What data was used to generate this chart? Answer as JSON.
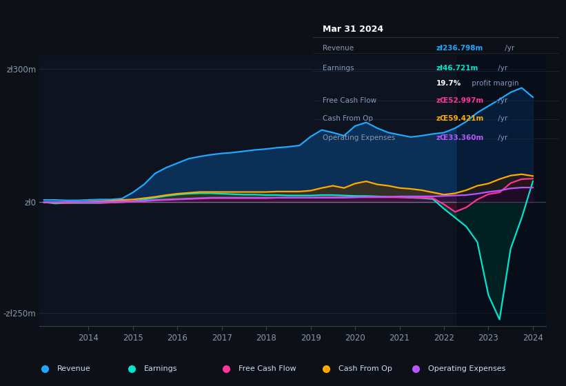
{
  "bg_color": "#0d1117",
  "plot_bg_color": "#0d1420",
  "grid_color": "#1e2535",
  "zero_line_color": "#7788aa",
  "years": [
    2013.0,
    2013.25,
    2013.5,
    2013.75,
    2014.0,
    2014.25,
    2014.5,
    2014.75,
    2015.0,
    2015.25,
    2015.5,
    2015.75,
    2016.0,
    2016.25,
    2016.5,
    2016.75,
    2017.0,
    2017.25,
    2017.5,
    2017.75,
    2018.0,
    2018.25,
    2018.5,
    2018.75,
    2019.0,
    2019.25,
    2019.5,
    2019.75,
    2020.0,
    2020.25,
    2020.5,
    2020.75,
    2021.0,
    2021.25,
    2021.5,
    2021.75,
    2022.0,
    2022.25,
    2022.5,
    2022.75,
    2023.0,
    2023.25,
    2023.5,
    2023.75,
    2024.0
  ],
  "revenue": [
    5,
    5,
    4,
    4,
    5,
    6,
    6,
    8,
    22,
    40,
    65,
    78,
    88,
    98,
    103,
    107,
    110,
    112,
    115,
    118,
    120,
    123,
    125,
    128,
    148,
    163,
    157,
    150,
    172,
    180,
    167,
    157,
    152,
    147,
    150,
    154,
    157,
    167,
    182,
    202,
    217,
    232,
    248,
    258,
    237
  ],
  "earnings": [
    0,
    -3,
    -2,
    -2,
    -2,
    -2,
    -1,
    0,
    2,
    6,
    10,
    14,
    17,
    19,
    20,
    20,
    19,
    18,
    17,
    17,
    16,
    16,
    15,
    15,
    15,
    16,
    16,
    15,
    14,
    14,
    13,
    12,
    11,
    10,
    9,
    7,
    -15,
    -35,
    -55,
    -90,
    -210,
    -265,
    -105,
    -35,
    47
  ],
  "free_cash_flow": [
    -1,
    -1,
    -2,
    -1,
    -1,
    -1,
    -1,
    0,
    1,
    2,
    4,
    5,
    6,
    7,
    8,
    9,
    9,
    9,
    9,
    9,
    9,
    10,
    10,
    10,
    10,
    11,
    11,
    11,
    11,
    11,
    11,
    11,
    11,
    11,
    10,
    9,
    -5,
    -22,
    -12,
    6,
    18,
    22,
    43,
    52,
    53
  ],
  "cash_from_op": [
    0,
    0,
    0,
    0,
    1,
    2,
    3,
    5,
    6,
    9,
    12,
    16,
    19,
    21,
    23,
    23,
    23,
    23,
    23,
    23,
    23,
    24,
    24,
    24,
    26,
    32,
    37,
    32,
    42,
    47,
    40,
    37,
    32,
    30,
    27,
    22,
    17,
    20,
    27,
    37,
    42,
    52,
    60,
    63,
    59
  ],
  "op_expenses": [
    0,
    0,
    0,
    0,
    0,
    1,
    1,
    2,
    2,
    3,
    5,
    6,
    7,
    8,
    9,
    10,
    10,
    10,
    10,
    10,
    10,
    10,
    10,
    10,
    10,
    10,
    10,
    10,
    11,
    12,
    12,
    12,
    13,
    13,
    13,
    13,
    14,
    15,
    16,
    19,
    23,
    26,
    31,
    33,
    33
  ],
  "colors": {
    "revenue": "#1ea8ff",
    "earnings": "#00e5cc",
    "free_cash_flow": "#ff3399",
    "cash_from_op": "#ffaa00",
    "op_expenses": "#bb55ff"
  },
  "fill_colors": {
    "revenue": "#0a3a6a",
    "earnings": "#004433",
    "free_cash_flow": "#550022",
    "cash_from_op": "#553300",
    "op_expenses": "#330055"
  },
  "ylim": [
    -280,
    330
  ],
  "yticks_vals": [
    -250,
    0,
    300
  ],
  "ytick_labels": [
    "-zł250m",
    "zł0",
    "zł300m"
  ],
  "xticks": [
    2014,
    2015,
    2016,
    2017,
    2018,
    2019,
    2020,
    2021,
    2022,
    2023,
    2024
  ],
  "info_title": "Mar 31 2024",
  "info_rows": [
    {
      "label": "Revenue",
      "value": "zł236.798m",
      "unit": " /yr",
      "color": "#1ea8ff"
    },
    {
      "label": "Earnings",
      "value": "zł46.721m",
      "unit": " /yr",
      "color": "#00e5cc"
    },
    {
      "label": "",
      "value": "19.7%",
      "unit": " profit margin",
      "color": "#ffffff"
    },
    {
      "label": "Free Cash Flow",
      "value": "zŒ52.997m",
      "unit": " /yr",
      "color": "#ff3399"
    },
    {
      "label": "Cash From Op",
      "value": "zŒ59.421m",
      "unit": " /yr",
      "color": "#ffaa00"
    },
    {
      "label": "Operating Expenses",
      "value": "zŒ33.360m",
      "unit": " /yr",
      "color": "#bb55ff"
    }
  ],
  "legend_items": [
    {
      "label": "Revenue",
      "color": "#1ea8ff"
    },
    {
      "label": "Earnings",
      "color": "#00e5cc"
    },
    {
      "label": "Free Cash Flow",
      "color": "#ff3399"
    },
    {
      "label": "Cash From Op",
      "color": "#ffaa00"
    },
    {
      "label": "Operating Expenses",
      "color": "#bb55ff"
    }
  ]
}
